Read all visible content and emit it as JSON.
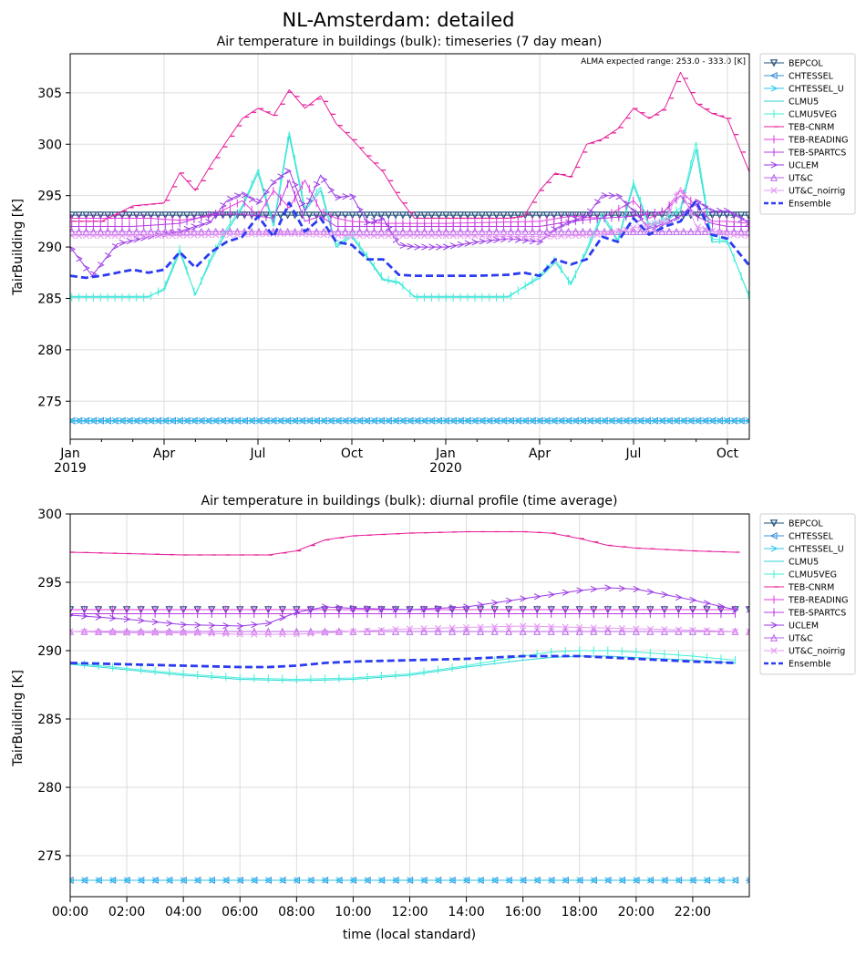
{
  "figure": {
    "title": "NL-Amsterdam: detailed"
  },
  "chart_data": [
    {
      "type": "line",
      "title": "Air temperature in buildings (bulk): timeseries (7 day mean)",
      "ylabel": "TairBuilding [K]",
      "xlabel": "",
      "annotation": "ALMA expected range: 253.0 - 333.0 [K]",
      "x_range_months": [
        0,
        21.7
      ],
      "ylim": [
        271.3,
        308.8
      ],
      "yticks": [
        275,
        280,
        285,
        290,
        295,
        300,
        305
      ],
      "xtick_labels": [
        {
          "m": 0,
          "label": "Jan",
          "sub": "2019"
        },
        {
          "m": 3,
          "label": "Apr",
          "sub": ""
        },
        {
          "m": 6,
          "label": "Jul",
          "sub": ""
        },
        {
          "m": 9,
          "label": "Oct",
          "sub": ""
        },
        {
          "m": 12,
          "label": "Jan",
          "sub": "2020"
        },
        {
          "m": 15,
          "label": "Apr",
          "sub": ""
        },
        {
          "m": 18,
          "label": "Jul",
          "sub": ""
        },
        {
          "m": 21,
          "label": "Oct",
          "sub": ""
        }
      ],
      "grid": true,
      "legend_position": "outside-right",
      "series": [
        {
          "name": "BEPCOL",
          "color": "#1f4e79",
          "marker": "tri_down",
          "x": [
            0,
            21.7
          ],
          "y": [
            293.1,
            293.1
          ]
        },
        {
          "name": "CHTESSEL",
          "color": "#3c8fd8",
          "marker": "tri_left",
          "x": [
            0,
            21.7
          ],
          "y": [
            273.1,
            273.1
          ]
        },
        {
          "name": "CHTESSEL_U",
          "color": "#28c3f0",
          "marker": "tri_right",
          "x": [
            0,
            21.7
          ],
          "y": [
            273.1,
            273.1
          ]
        },
        {
          "name": "CLMU5",
          "color": "#2fd6d6",
          "marker": "line",
          "x": [
            0,
            2.5,
            3.0,
            3.5,
            4.0,
            4.5,
            5.0,
            5.5,
            6.0,
            6.5,
            7.0,
            7.5,
            8.0,
            8.5,
            9.0,
            10.0,
            10.5,
            11.0,
            12.0,
            14.0,
            15.0,
            15.5,
            16.0,
            16.5,
            17.0,
            17.5,
            18.0,
            18.5,
            19.0,
            19.5,
            20.0,
            20.5,
            21.0,
            21.7
          ],
          "y": [
            285.2,
            285.2,
            285.8,
            289.5,
            285.4,
            288.7,
            291.5,
            293.8,
            297.2,
            292.0,
            300.8,
            293.5,
            295.5,
            290.0,
            291.0,
            286.8,
            286.5,
            285.2,
            285.2,
            285.2,
            287.0,
            288.5,
            286.5,
            289.5,
            293.0,
            290.5,
            296.0,
            292.0,
            292.5,
            293.5,
            299.5,
            290.5,
            290.5,
            285.2
          ]
        },
        {
          "name": "CLMU5VEG",
          "color": "#40f0d8",
          "marker": "vline",
          "x": [
            0,
            2.5,
            3.0,
            3.5,
            4.0,
            4.5,
            5.0,
            5.5,
            6.0,
            6.5,
            7.0,
            7.5,
            8.0,
            8.5,
            9.0,
            10.0,
            10.5,
            11.0,
            12.0,
            14.0,
            15.0,
            15.5,
            16.0,
            16.5,
            17.0,
            17.5,
            18.0,
            18.5,
            19.0,
            19.5,
            20.0,
            20.5,
            21.0,
            21.7
          ],
          "y": [
            285.1,
            285.1,
            286.0,
            289.8,
            285.3,
            289.0,
            291.8,
            294.0,
            297.5,
            292.3,
            301.2,
            293.8,
            295.8,
            290.2,
            291.2,
            286.9,
            286.6,
            285.1,
            285.1,
            285.1,
            287.2,
            288.8,
            286.3,
            289.8,
            293.3,
            290.7,
            296.3,
            292.2,
            292.8,
            293.8,
            300.2,
            290.8,
            290.6,
            285.1
          ]
        },
        {
          "name": "TEB-CNRM",
          "color": "#e6209a",
          "marker": "hline",
          "x": [
            0,
            1.0,
            2.0,
            3.0,
            3.5,
            4.0,
            4.5,
            5.0,
            5.5,
            6.0,
            6.5,
            7.0,
            7.5,
            8.0,
            8.5,
            9.0,
            9.5,
            10.0,
            10.5,
            11.0,
            12.0,
            14.0,
            14.5,
            15.0,
            15.5,
            16.0,
            16.5,
            17.0,
            17.5,
            18.0,
            18.5,
            19.0,
            19.5,
            20.0,
            20.5,
            21.0,
            21.7
          ],
          "y": [
            292.5,
            292.5,
            294.0,
            294.3,
            297.2,
            295.5,
            298.0,
            300.3,
            302.5,
            303.5,
            302.8,
            305.3,
            303.5,
            304.7,
            302.0,
            300.5,
            298.8,
            297.3,
            294.8,
            292.8,
            292.8,
            292.8,
            293.0,
            295.5,
            297.2,
            296.8,
            300.0,
            300.5,
            301.5,
            303.5,
            302.5,
            303.5,
            307.0,
            304.0,
            303.0,
            302.5,
            297.3
          ]
        },
        {
          "name": "TEB-READING",
          "color": "#e03ce0",
          "marker": "vline",
          "x": [
            0,
            2.5,
            3.5,
            4.5,
            5.5,
            6.0,
            6.5,
            7.0,
            7.5,
            8.0,
            8.5,
            9.0,
            10.0,
            12.0,
            15.0,
            16.0,
            17.0,
            18.0,
            18.5,
            19.0,
            19.5,
            20.0,
            20.5,
            21.0,
            21.7
          ],
          "y": [
            292.8,
            292.8,
            292.6,
            293.0,
            294.5,
            293.0,
            295.5,
            293.8,
            296.5,
            293.5,
            292.8,
            292.5,
            292.3,
            292.3,
            292.5,
            293.0,
            292.8,
            294.5,
            292.8,
            293.5,
            295.5,
            294.0,
            292.5,
            292.5,
            292.3
          ]
        },
        {
          "name": "TEB-SPARTCS",
          "color": "#b83ae0",
          "marker": "vline",
          "x": [
            0,
            2.0,
            3.5,
            4.5,
            5.5,
            6.5,
            7.0,
            7.5,
            8.0,
            8.5,
            9.0,
            10.0,
            12.0,
            15.0,
            16.0,
            17.0,
            18.0,
            19.0,
            19.5,
            20.0,
            20.5,
            21.0,
            21.7
          ],
          "y": [
            292.0,
            292.0,
            292.3,
            293.2,
            293.2,
            292.8,
            296.5,
            292.5,
            293.0,
            292.0,
            292.0,
            292.0,
            292.0,
            292.0,
            292.5,
            292.8,
            293.0,
            293.5,
            295.0,
            293.0,
            292.3,
            292.0,
            292.0
          ]
        },
        {
          "name": "UCLEM",
          "color": "#9a3ae6",
          "marker": "tri_right",
          "x": [
            0,
            0.7,
            1.5,
            2.5,
            3.5,
            4.5,
            5.0,
            5.5,
            6.0,
            6.5,
            7.0,
            7.5,
            8.0,
            8.5,
            9.0,
            9.5,
            10.0,
            10.5,
            11.0,
            12.0,
            13.0,
            14.0,
            15.0,
            15.5,
            16.0,
            16.5,
            17.0,
            17.5,
            18.0,
            18.5,
            19.0,
            19.5,
            20.0,
            20.5,
            21.0,
            21.7
          ],
          "y": [
            290.0,
            287.2,
            290.3,
            291.0,
            291.5,
            292.5,
            294.5,
            295.2,
            294.3,
            296.3,
            297.5,
            293.5,
            297.0,
            294.8,
            295.0,
            292.3,
            292.8,
            290.2,
            290.0,
            290.0,
            290.5,
            290.8,
            290.5,
            291.8,
            292.5,
            293.0,
            295.0,
            295.0,
            293.5,
            291.8,
            292.3,
            293.0,
            294.5,
            293.5,
            293.5,
            292.3
          ]
        },
        {
          "name": "UT&C",
          "color": "#ba60e8",
          "marker": "tri_up",
          "x": [
            0,
            21.7
          ],
          "y": [
            291.5,
            291.5
          ]
        },
        {
          "name": "UT&C_noirrig",
          "color": "#e49af2",
          "marker": "x",
          "x": [
            0,
            3.0,
            5.0,
            7.0,
            9.0,
            12.0,
            15.0,
            17.0,
            19.0,
            19.5,
            20.0,
            21.0,
            21.7
          ],
          "y": [
            291.1,
            291.1,
            291.2,
            291.3,
            291.1,
            291.1,
            291.0,
            291.2,
            292.5,
            295.8,
            292.0,
            291.2,
            291.1
          ]
        },
        {
          "name": "Ensemble",
          "color": "#2b3cf0",
          "marker": "dashed",
          "x": [
            0,
            0.5,
            1.0,
            1.5,
            2.0,
            2.5,
            3.0,
            3.5,
            4.0,
            4.5,
            5.0,
            5.5,
            6.0,
            6.5,
            7.0,
            7.5,
            8.0,
            8.5,
            9.0,
            9.5,
            10.0,
            10.5,
            11.0,
            12.0,
            13.0,
            14.0,
            14.5,
            15.0,
            15.5,
            16.0,
            16.5,
            17.0,
            17.5,
            18.0,
            18.5,
            19.0,
            19.5,
            20.0,
            20.5,
            21.0,
            21.7
          ],
          "y": [
            287.2,
            287.0,
            287.2,
            287.5,
            287.8,
            287.5,
            287.8,
            289.5,
            288.0,
            289.5,
            290.5,
            291.0,
            293.0,
            291.0,
            294.3,
            291.5,
            292.8,
            290.5,
            290.2,
            288.8,
            288.8,
            287.3,
            287.2,
            287.2,
            287.2,
            287.3,
            287.5,
            287.2,
            288.8,
            288.3,
            288.8,
            291.0,
            290.5,
            292.8,
            291.2,
            292.0,
            292.5,
            294.5,
            291.2,
            290.8,
            288.2
          ]
        }
      ]
    },
    {
      "type": "line",
      "title": "Air temperature in buildings (bulk): diurnal profile (time average)",
      "ylabel": "TairBuilding [K]",
      "xlabel": "time (local standard)",
      "x_range_hours": [
        0,
        24
      ],
      "ylim": [
        272,
        300
      ],
      "yticks": [
        275,
        280,
        285,
        290,
        295,
        300
      ],
      "xtick_labels": [
        "00:00",
        "02:00",
        "04:00",
        "06:00",
        "08:00",
        "10:00",
        "12:00",
        "14:00",
        "16:00",
        "18:00",
        "20:00",
        "22:00"
      ],
      "grid": true,
      "legend_position": "outside-right",
      "series": [
        {
          "name": "BEPCOL",
          "color": "#1f4e79",
          "marker": "tri_down",
          "x": [
            0,
            23.5
          ],
          "y": [
            293.0,
            293.0
          ]
        },
        {
          "name": "CHTESSEL",
          "color": "#3c8fd8",
          "marker": "tri_left",
          "x": [
            0,
            23.5
          ],
          "y": [
            273.2,
            273.2
          ]
        },
        {
          "name": "CHTESSEL_U",
          "color": "#28c3f0",
          "marker": "tri_right",
          "x": [
            0,
            23.5
          ],
          "y": [
            273.2,
            273.2
          ]
        },
        {
          "name": "CLMU5",
          "color": "#2fd6d6",
          "marker": "line",
          "x": [
            0,
            2,
            4,
            6,
            8,
            10,
            12,
            14,
            16,
            17,
            18,
            19,
            20,
            22,
            23.5
          ],
          "y": [
            289.0,
            288.6,
            288.2,
            287.9,
            287.8,
            287.9,
            288.2,
            288.8,
            289.3,
            289.5,
            289.6,
            289.6,
            289.5,
            289.3,
            289.1
          ]
        },
        {
          "name": "CLMU5VEG",
          "color": "#40f0d8",
          "marker": "vline",
          "x": [
            0,
            2,
            4,
            6,
            8,
            10,
            12,
            14,
            16,
            17,
            18,
            19,
            20,
            22,
            23.5
          ],
          "y": [
            289.1,
            288.7,
            288.3,
            288.0,
            287.9,
            288.0,
            288.3,
            288.9,
            289.6,
            289.9,
            290.0,
            290.0,
            289.9,
            289.6,
            289.3
          ]
        },
        {
          "name": "TEB-CNRM",
          "color": "#e6209a",
          "marker": "hline",
          "x": [
            0,
            2,
            4,
            6,
            7,
            8,
            9,
            10,
            12,
            14,
            16,
            17,
            18,
            19,
            20,
            22,
            23.5
          ],
          "y": [
            297.2,
            297.1,
            297.0,
            297.0,
            297.0,
            297.3,
            298.1,
            298.4,
            298.6,
            298.7,
            298.7,
            298.6,
            298.2,
            297.7,
            297.5,
            297.3,
            297.2
          ]
        },
        {
          "name": "TEB-READING",
          "color": "#e03ce0",
          "marker": "vline",
          "x": [
            0,
            23.5
          ],
          "y": [
            293.0,
            293.0
          ]
        },
        {
          "name": "TEB-SPARTCS",
          "color": "#b83ae0",
          "marker": "vline",
          "x": [
            0,
            23.5
          ],
          "y": [
            292.7,
            292.7
          ]
        },
        {
          "name": "UCLEM",
          "color": "#9a3ae6",
          "marker": "tri_right",
          "x": [
            0,
            2,
            4,
            6,
            7,
            8,
            9,
            10,
            12,
            14,
            16,
            18,
            19,
            20,
            22,
            23.5
          ],
          "y": [
            292.6,
            292.3,
            291.9,
            291.8,
            292.0,
            292.8,
            293.2,
            293.1,
            293.0,
            293.2,
            293.8,
            294.4,
            294.6,
            294.5,
            293.7,
            293.0
          ]
        },
        {
          "name": "UT&C",
          "color": "#ba60e8",
          "marker": "tri_up",
          "x": [
            0,
            23.5
          ],
          "y": [
            291.4,
            291.4
          ]
        },
        {
          "name": "UT&C_noirrig",
          "color": "#e49af2",
          "marker": "x",
          "x": [
            0,
            2,
            4,
            6,
            8,
            10,
            12,
            14,
            16,
            18,
            20,
            22,
            23.5
          ],
          "y": [
            291.4,
            291.3,
            291.3,
            291.2,
            291.2,
            291.4,
            291.6,
            291.7,
            291.8,
            291.7,
            291.6,
            291.5,
            291.4
          ]
        },
        {
          "name": "Ensemble",
          "color": "#2b3cf0",
          "marker": "dashed",
          "x": [
            0,
            2,
            4,
            6,
            7,
            8,
            9,
            10,
            12,
            14,
            16,
            18,
            20,
            22,
            23.5
          ],
          "y": [
            289.1,
            289.0,
            288.9,
            288.8,
            288.8,
            288.9,
            289.1,
            289.2,
            289.3,
            289.4,
            289.6,
            289.6,
            289.4,
            289.2,
            289.1
          ]
        }
      ]
    }
  ]
}
